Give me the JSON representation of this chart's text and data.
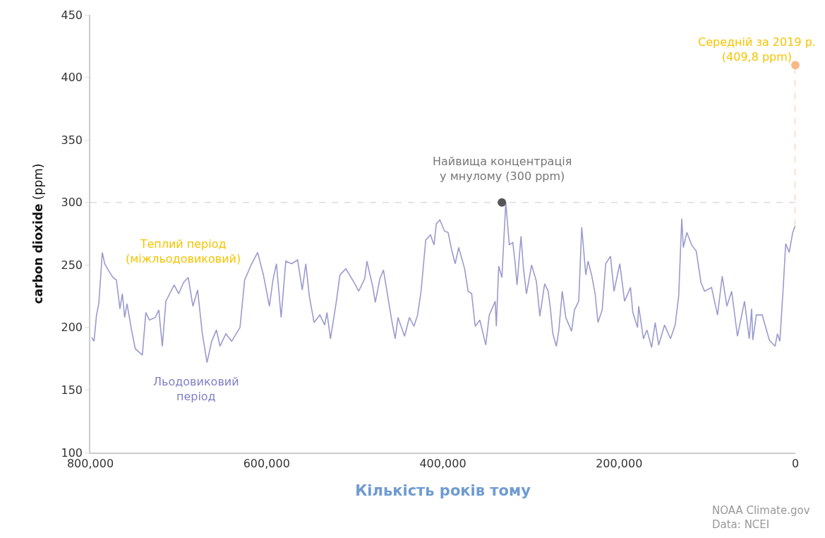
{
  "chart_data": {
    "type": "line",
    "xlabel": "Кількість років тому",
    "ylabel": "carbon dioxide (ppm)",
    "xlim": [
      800000,
      0
    ],
    "xticks": [
      {
        "value": 800000,
        "label": "800,000"
      },
      {
        "value": 600000,
        "label": "600,000"
      },
      {
        "value": 400000,
        "label": "400,000"
      },
      {
        "value": 200000,
        "label": "200,000"
      },
      0
    ],
    "ylim": [
      100,
      450
    ],
    "yticks": [
      100,
      150,
      200,
      250,
      300,
      350,
      400,
      450
    ],
    "grid": false,
    "series": [
      {
        "color": "#9b9bcf",
        "x": [
          798400,
          795800,
          793000,
          790400,
          786400,
          783700,
          779700,
          774400,
          770400,
          766400,
          763700,
          761000,
          758400,
          753000,
          749000,
          741000,
          737000,
          733000,
          726300,
          722300,
          718300,
          714300,
          704900,
          699700,
          694300,
          688900,
          683600,
          678300,
          672900,
          667600,
          662300,
          656900,
          652900,
          646200,
          639600,
          630200,
          624900,
          616900,
          610200,
          603600,
          596800,
          592800,
          588800,
          583500,
          578200,
          571500,
          564800,
          559500,
          555500,
          551500,
          546100,
          539500,
          534100,
          531500,
          527500,
          520800,
          516800,
          510100,
          500700,
          495500,
          488700,
          486100,
          479400,
          476700,
          471400,
          467400,
          458100,
          454100,
          450900,
          443400,
          438000,
          432700,
          428700,
          424700,
          419400,
          414000,
          410000,
          407400,
          403400,
          398000,
          394000,
          390000,
          386000,
          382000,
          375300,
          371300,
          367300,
          363300,
          358000,
          351300,
          347300,
          340600,
          339300,
          336600,
          333000,
          328600,
          324600,
          320600,
          317900,
          315800,
          311300,
          308500,
          305100,
          299300,
          293900,
          289900,
          284500,
          280500,
          277900,
          275200,
          271200,
          268500,
          264500,
          260500,
          253900,
          250700,
          245800,
          242400,
          237800,
          235200,
          231200,
          227200,
          224000,
          219200,
          215200,
          209800,
          205800,
          199200,
          193800,
          187100,
          184400,
          179100,
          177800,
          172400,
          168400,
          163100,
          159100,
          155100,
          148400,
          141700,
          136400,
          132400,
          128900,
          127100,
          123100,
          117700,
          112400,
          107100,
          103100,
          95100,
          88300,
          83000,
          77700,
          72300,
          65700,
          57700,
          52300,
          49600,
          48300,
          44300,
          37600,
          29600,
          23000,
          20300,
          17600,
          13600,
          11000,
          7000,
          3000,
          300
        ],
        "values": [
          192,
          189,
          210,
          219,
          260,
          251,
          246,
          240,
          238,
          215,
          227,
          208,
          219,
          197,
          183,
          178,
          212,
          206,
          208,
          214,
          185,
          221,
          234,
          227,
          236,
          240,
          217,
          230,
          195,
          172,
          189,
          198,
          185,
          195,
          189,
          200,
          238,
          251,
          260,
          242,
          217,
          238,
          251,
          208,
          253,
          251,
          254,
          230,
          251,
          225,
          204,
          210,
          202,
          212,
          191,
          221,
          242,
          247,
          236,
          229,
          239,
          253,
          232,
          220,
          239,
          246,
          206,
          191,
          208,
          193,
          208,
          201,
          210,
          229,
          270,
          274,
          266,
          283,
          286,
          277,
          276,
          262,
          251,
          264,
          247,
          229,
          227,
          201,
          206,
          186,
          210,
          221,
          201,
          249,
          240,
          300,
          266,
          268,
          251,
          234,
          273,
          247,
          227,
          250,
          237,
          209,
          235,
          229,
          215,
          195,
          185,
          197,
          229,
          208,
          197,
          214,
          221,
          280,
          242,
          253,
          242,
          227,
          204,
          214,
          251,
          257,
          229,
          251,
          221,
          232,
          212,
          200,
          217,
          191,
          198,
          184,
          204,
          186,
          202,
          191,
          202,
          225,
          287,
          264,
          276,
          266,
          261,
          236,
          229,
          232,
          210,
          241,
          217,
          229,
          193,
          221,
          191,
          215,
          190,
          210,
          210,
          190,
          185,
          195,
          189,
          234,
          267,
          260,
          276,
          281
        ]
      },
      {
        "type": "scatter",
        "color": "#555555",
        "marker": "circle",
        "x": [
          333000
        ],
        "values": [
          300
        ]
      },
      {
        "type": "line",
        "color": "#f7b988",
        "line_style": "dashed",
        "x": [
          0,
          0
        ],
        "values": [
          281,
          409.8
        ]
      },
      {
        "type": "scatter",
        "color": "#f7b988",
        "marker": "circle",
        "x": [
          0
        ],
        "values": [
          409.8
        ]
      }
    ],
    "ref_lines": [
      {
        "axis": "y",
        "value": 300,
        "color": "#dddddd",
        "line_style": "dashed"
      }
    ],
    "annotations": [
      {
        "text": "Найвища концентрація\nу мнулому (300 ppm)",
        "x": 333000,
        "y": 300
      },
      {
        "text": "Середній за 2019 р.\n(409,8 ppm)",
        "x": 0,
        "y": 409.8
      },
      "Теплий період\n(міжльодовиковий)",
      "Льодовиковий\nперіод",
      "NOAA Climate.gov\nData: NCEI"
    ]
  }
}
